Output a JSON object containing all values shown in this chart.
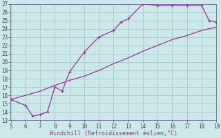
{
  "xlabel": "Windchill (Refroidissement éolien,°C)",
  "x_data": [
    5,
    6,
    6.5,
    7,
    7.5,
    8,
    8.5,
    9,
    10,
    11,
    12,
    12.5,
    13,
    14,
    15,
    16,
    17,
    18,
    18.5,
    19
  ],
  "y_data": [
    15.5,
    14.8,
    13.5,
    13.7,
    14.0,
    17.0,
    16.5,
    18.8,
    21.2,
    23.0,
    23.8,
    24.8,
    25.2,
    27.0,
    26.8,
    26.8,
    26.8,
    26.8,
    25.0,
    24.8
  ],
  "x2_data": [
    5,
    6,
    7,
    8,
    9,
    10,
    11,
    12,
    13,
    14,
    15,
    16,
    17,
    18,
    19
  ],
  "y2_data": [
    15.5,
    16.0,
    16.5,
    17.2,
    17.8,
    18.3,
    19.0,
    19.8,
    20.5,
    21.3,
    22.0,
    22.7,
    23.2,
    23.8,
    24.2
  ],
  "line_color": "#993399",
  "bg_color": "#cce8e8",
  "grid_color": "#aacccc",
  "spine_color": "#7777aa",
  "xlim": [
    5,
    19
  ],
  "ylim": [
    13,
    27
  ],
  "xticks": [
    5,
    6,
    7,
    8,
    9,
    10,
    11,
    12,
    13,
    14,
    15,
    16,
    17,
    18,
    19
  ],
  "yticks": [
    13,
    14,
    15,
    16,
    17,
    18,
    19,
    20,
    21,
    22,
    23,
    24,
    25,
    26,
    27
  ]
}
